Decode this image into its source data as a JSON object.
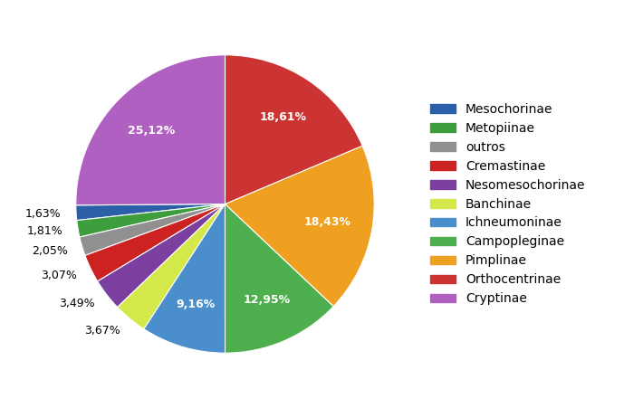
{
  "chart_data": {
    "type": "pie",
    "categories": [
      "Mesochorinae",
      "Metopiinae",
      "outros",
      "Cremastinae",
      "Nesomesochorinae",
      "Banchinae",
      "Ichneumoninae",
      "Campopleginae",
      "Pimplinae",
      "Orthocentrinae",
      "Cryptinae"
    ],
    "values": [
      1.63,
      1.81,
      2.05,
      3.07,
      3.49,
      3.67,
      9.16,
      12.95,
      18.43,
      18.61,
      25.12
    ],
    "value_labels": [
      "1,63%",
      "1,81%",
      "2,05%",
      "3,07%",
      "3,49%",
      "3,67%",
      "9,16%",
      "12,95%",
      "18,43%",
      "18,61%",
      "25,12%"
    ],
    "colors": [
      "#2B5FA8",
      "#3E9E3E",
      "#909090",
      "#CC2222",
      "#7B3FA0",
      "#D4E84A",
      "#4A8FCC",
      "#4DAF4D",
      "#F0A020",
      "#CC3333",
      "#B060C0"
    ],
    "data_labels": true,
    "legend": "right"
  }
}
